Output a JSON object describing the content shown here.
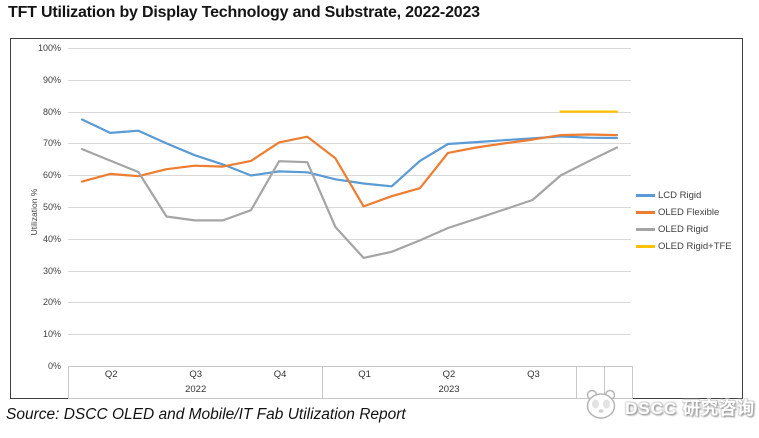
{
  "title": "TFT Utilization by Display Technology and Substrate, 2022-2023",
  "source": "Source: DSCC OLED and Mobile/IT Fab Utilization Report",
  "watermark": "DSCC 研究咨询",
  "colors": {
    "lcd_rigid": "#5B9BD5",
    "oled_flexible": "#ED7D31",
    "oled_rigid": "#A5A5A5",
    "oled_rigid_tfe": "#FFC000",
    "gridline": "#D9D9D9",
    "frame_border": "#3F3F3F",
    "axis_border": "#C8C8C8",
    "text": "#404040"
  },
  "chart_data": {
    "type": "line",
    "title": "TFT Utilization by Display Technology and Substrate, 2022-2023",
    "xlabel": "",
    "ylabel": "Utilization %",
    "ylim": [
      0,
      100
    ],
    "grid": true,
    "legend_position": "right",
    "y_ticks": [
      "100%",
      "90%",
      "80%",
      "70%",
      "60%",
      "50%",
      "40%",
      "30%",
      "20%",
      "10%",
      "0%"
    ],
    "x": [
      "2022-04",
      "2022-05",
      "2022-06",
      "2022-07",
      "2022-08",
      "2022-09",
      "2022-10",
      "2022-11",
      "2022-12",
      "2023-01",
      "2023-02",
      "2023-03",
      "2023-04",
      "2023-05",
      "2023-06",
      "2023-07",
      "2023-08",
      "2023-09",
      "2023-10",
      "2023-11"
    ],
    "x_axis": {
      "quarters": [
        {
          "label": "Q2",
          "span": 3
        },
        {
          "label": "Q3",
          "span": 3
        },
        {
          "label": "Q4",
          "span": 3
        },
        {
          "label": "Q1",
          "span": 3
        },
        {
          "label": "Q2",
          "span": 3
        },
        {
          "label": "Q3",
          "span": 3
        },
        {
          "label": "",
          "span": 1
        },
        {
          "label": "",
          "span": 1
        }
      ],
      "years": [
        {
          "label": "2022",
          "span": 9
        },
        {
          "label": "2023",
          "span": 9
        }
      ]
    },
    "series": [
      {
        "name": "LCD Rigid",
        "color": "#5B9BD5",
        "values": [
          77.5,
          73.3,
          74.0,
          70.0,
          66.3,
          63.4,
          59.9,
          61.2,
          60.9,
          58.7,
          57.4,
          56.5,
          64.5,
          69.8,
          70.4,
          71.0,
          71.6,
          72.2,
          71.8,
          71.7
        ]
      },
      {
        "name": "OLED Flexible",
        "color": "#ED7D31",
        "values": [
          58.0,
          60.4,
          59.7,
          61.9,
          63.0,
          62.7,
          64.5,
          70.3,
          72.1,
          65.3,
          50.2,
          53.4,
          55.9,
          67.0,
          68.7,
          70.0,
          71.2,
          72.6,
          72.8,
          72.6
        ]
      },
      {
        "name": "OLED Rigid",
        "color": "#A5A5A5",
        "values": [
          68.2,
          64.6,
          61.0,
          47.0,
          45.8,
          45.8,
          49.0,
          64.4,
          64.1,
          43.7,
          34.0,
          35.9,
          39.5,
          43.4,
          46.3,
          49.2,
          52.2,
          59.9,
          64.4,
          68.7
        ]
      },
      {
        "name": "OLED Rigid+TFE",
        "color": "#FFC000",
        "values": [
          null,
          null,
          null,
          null,
          null,
          null,
          null,
          null,
          null,
          null,
          null,
          null,
          null,
          null,
          null,
          null,
          null,
          80,
          80,
          80
        ]
      }
    ]
  }
}
